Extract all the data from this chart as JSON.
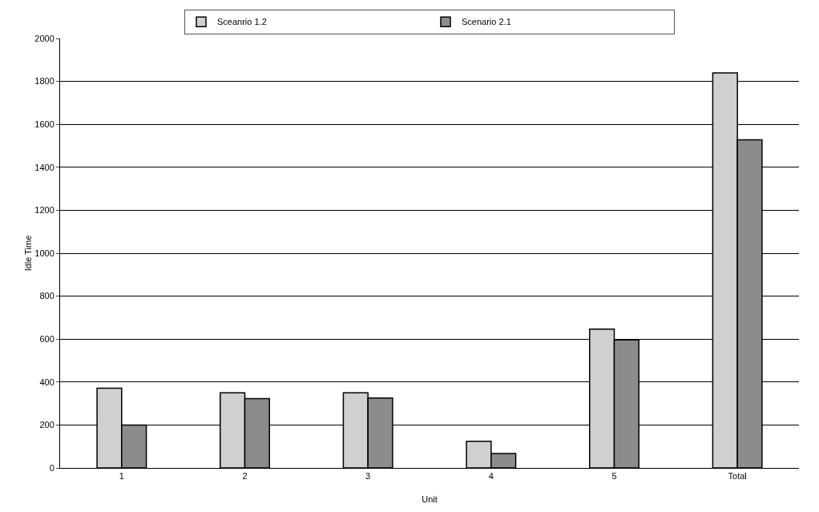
{
  "chart_data": {
    "type": "bar",
    "xlabel": "Unit",
    "ylabel": "Idle Time",
    "categories": [
      "1",
      "2",
      "3",
      "4",
      "5",
      "Total"
    ],
    "series": [
      {
        "name": "Sceanrio 1.2",
        "color": "#d0d0d0",
        "values": [
          371,
          350,
          350,
          124,
          646,
          1840
        ]
      },
      {
        "name": "Scenario 2.1",
        "color": "#8c8c8c",
        "values": [
          200,
          323,
          326,
          67,
          596,
          1528
        ]
      }
    ],
    "ylim": [
      0,
      2000
    ],
    "yticks": [
      0,
      200,
      400,
      600,
      800,
      1000,
      1200,
      1400,
      1600,
      1800,
      2000
    ],
    "grid": "y",
    "legend": "top"
  }
}
